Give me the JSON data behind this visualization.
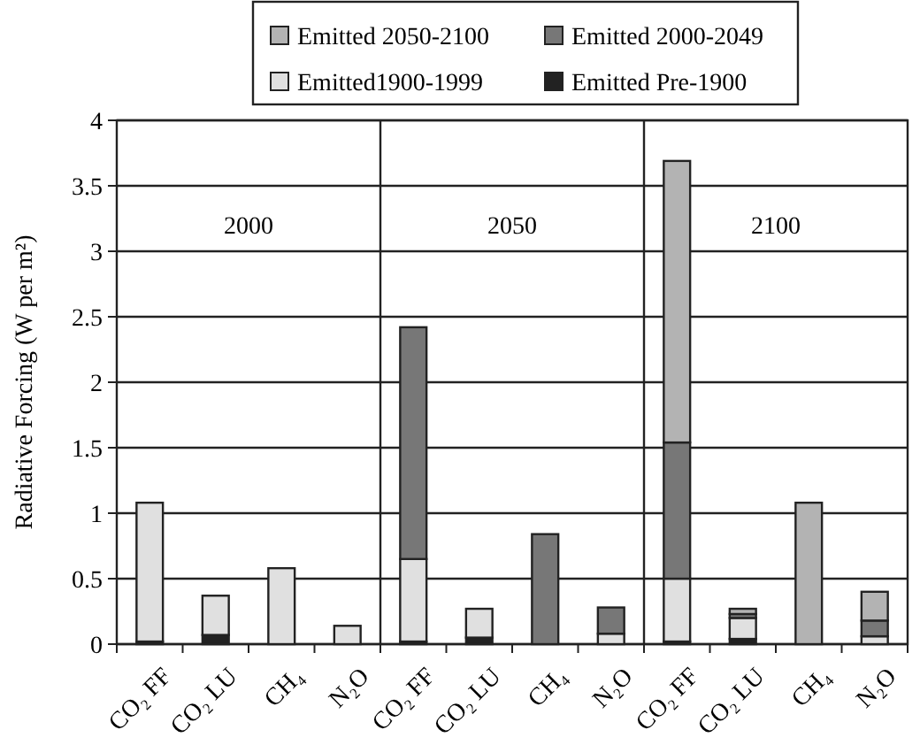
{
  "chart_data": {
    "type": "bar",
    "stacked": true,
    "ylabel": "Radiative Forcing (W per m²)",
    "categories": [
      "CO₂ FF",
      "CO₂ LU",
      "CH₄",
      "N₂O",
      "CO₂ FF",
      "CO₂ LU",
      "CH₄",
      "N₂O",
      "CO₂ FF",
      "CO₂ LU",
      "CH₄",
      "N₂O"
    ],
    "series": [
      {
        "name": "Emitted Pre-1900",
        "color": "#222222",
        "values": [
          0.02,
          0.07,
          null,
          null,
          0.02,
          0.05,
          null,
          null,
          0.02,
          0.04,
          null,
          null
        ]
      },
      {
        "name": "Emitted1900-1999",
        "color": "#e0e0e0",
        "values": [
          1.06,
          0.3,
          0.58,
          0.14,
          0.63,
          0.22,
          null,
          0.08,
          0.48,
          0.16,
          null,
          0.06
        ]
      },
      {
        "name": "Emitted 2000-2049",
        "color": "#777777",
        "values": [
          null,
          null,
          null,
          null,
          1.77,
          null,
          0.84,
          0.2,
          1.04,
          0.03,
          null,
          0.12
        ]
      },
      {
        "name": "Emitted 2050-2100",
        "color": "#b3b3b3",
        "values": [
          null,
          null,
          null,
          null,
          null,
          null,
          null,
          null,
          2.15,
          0.04,
          1.08,
          0.22
        ]
      }
    ],
    "annotations": [
      "2000",
      "2050",
      "2100"
    ],
    "ylim": [
      0,
      4
    ],
    "yticks": [
      0,
      0.5,
      1,
      1.5,
      2,
      2.5,
      3,
      3.5,
      4
    ],
    "grid": "y",
    "legend": "top"
  }
}
